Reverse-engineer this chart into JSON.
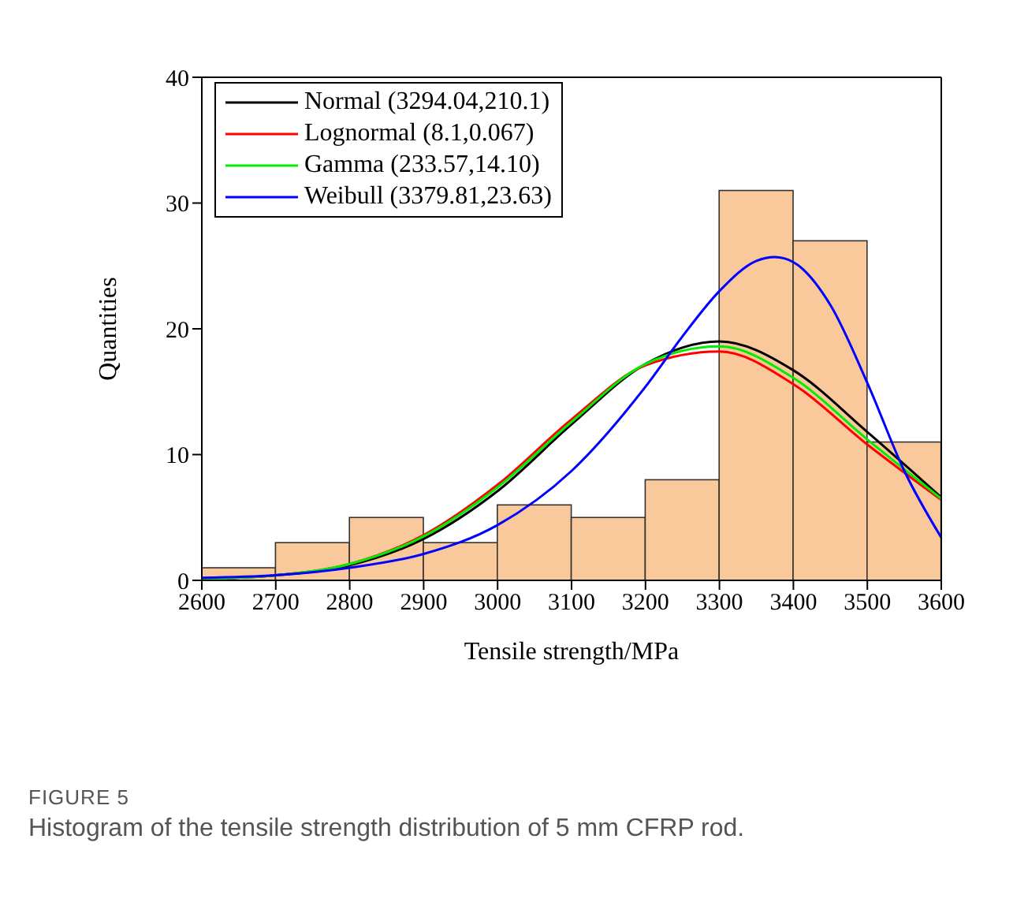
{
  "chart_data": {
    "type": "histogram",
    "xlabel": "Tensile strength/MPa",
    "ylabel": "Quantities",
    "bins": [
      2600,
      2700,
      2800,
      2900,
      3000,
      3100,
      3200,
      3300,
      3400,
      3500,
      3600
    ],
    "values": [
      1,
      3,
      5,
      3,
      6,
      5,
      8,
      31,
      27,
      11
    ],
    "color": "#f9c89b",
    "series": [
      {
        "name": "Normal (3294.04,210.1)",
        "type": "line",
        "color": "#000000",
        "x": [
          2600,
          2700,
          2800,
          2900,
          3000,
          3100,
          3200,
          3300,
          3400,
          3500,
          3600
        ],
        "values": [
          0.1,
          0.4,
          1.2,
          3.3,
          7.1,
          12.4,
          17.2,
          19,
          16.7,
          11.8,
          6.6
        ]
      },
      {
        "name": "Lognormal (8.1,0.067)",
        "type": "line",
        "color": "#ff0000",
        "x": [
          2600,
          2700,
          2800,
          2900,
          3000,
          3100,
          3200,
          3300,
          3400,
          3500,
          3600
        ],
        "values": [
          0.1,
          0.4,
          1.3,
          3.6,
          7.6,
          12.8,
          17.1,
          18.2,
          15.6,
          10.8,
          6.4
        ]
      },
      {
        "name": "Gamma (233.57,14.10)",
        "type": "line",
        "color": "#00ee00",
        "x": [
          2600,
          2700,
          2800,
          2900,
          3000,
          3100,
          3200,
          3300,
          3400,
          3500,
          3600
        ],
        "values": [
          0.1,
          0.4,
          1.3,
          3.5,
          7.4,
          12.6,
          17.2,
          18.6,
          16.1,
          11.2,
          6.5
        ]
      },
      {
        "name": "Weibull (3379.81,23.63)",
        "type": "line",
        "color": "#0000ff",
        "x": [
          2600,
          2700,
          2800,
          2900,
          3000,
          3100,
          3200,
          3250,
          3300,
          3350,
          3375,
          3400,
          3450,
          3500,
          3550,
          3600
        ],
        "values": [
          0.2,
          0.4,
          1,
          2.1,
          4.4,
          8.7,
          15.4,
          19.4,
          23,
          25.4,
          25.7,
          25.3,
          21.9,
          15.7,
          8.7,
          3.4
        ]
      }
    ],
    "xlim": [
      2600,
      3600
    ],
    "xticks": [
      2600,
      2700,
      2800,
      2900,
      3000,
      3100,
      3200,
      3300,
      3400,
      3500,
      3600
    ],
    "ylim": [
      0,
      40
    ],
    "yticks": [
      0,
      10,
      20,
      30,
      40
    ],
    "legend": "top left",
    "annotations": [
      "FIGURE 5",
      "Histogram of the tensile strength distribution of 5 mm CFRP rod."
    ]
  }
}
